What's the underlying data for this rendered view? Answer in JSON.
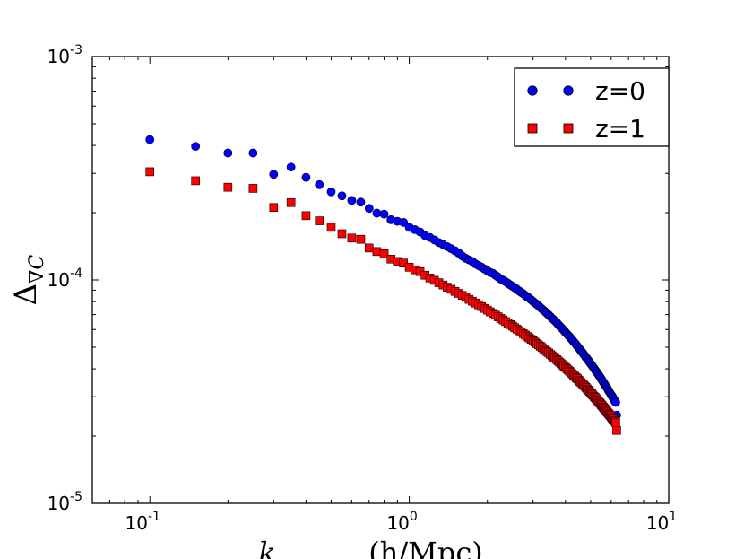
{
  "chart_data": {
    "type": "scatter",
    "title": "",
    "xscale": "log",
    "yscale": "log",
    "xlim": [
      0.06,
      10
    ],
    "ylim": [
      1e-05,
      0.001
    ],
    "grid": false,
    "legend_position": "top-right",
    "xlabel_parts": [
      "k",
      "(h/Mpc)"
    ],
    "ylabel": {
      "main": "Δ",
      "sub": "∇C"
    },
    "x_ticks": [
      {
        "value": 0.1,
        "base": "10",
        "exp": "-1"
      },
      {
        "value": 1,
        "base": "10",
        "exp": "0"
      },
      {
        "value": 10,
        "base": "10",
        "exp": "1"
      }
    ],
    "y_ticks": [
      {
        "value": 1e-05,
        "base": "10",
        "exp": "-5"
      },
      {
        "value": 0.0001,
        "base": "10",
        "exp": "-4"
      },
      {
        "value": 0.001,
        "base": "10",
        "exp": "-3"
      }
    ],
    "series": [
      {
        "name": "z=0",
        "marker": "circle",
        "color": "#0000ff",
        "x": [
          0.1,
          0.15,
          0.2,
          0.25,
          0.3,
          0.35,
          0.4,
          0.45,
          0.5,
          0.55,
          0.6,
          0.65,
          0.7,
          0.75,
          0.8,
          0.85,
          0.9,
          0.95,
          1.0,
          1.05,
          1.1,
          1.15,
          1.2,
          1.25,
          1.3,
          1.35,
          1.4,
          1.45,
          1.5,
          1.55,
          1.6,
          1.65,
          1.7,
          1.75,
          1.8,
          1.85,
          1.9,
          1.95,
          2.0,
          2.05,
          2.1,
          2.15,
          2.2,
          2.25,
          2.3,
          2.35,
          2.4,
          2.45,
          2.5,
          2.55,
          2.6,
          2.65,
          2.7,
          2.75,
          2.8,
          2.85,
          2.9,
          2.95,
          3.0,
          3.05,
          3.1,
          3.15,
          3.2,
          3.25,
          3.3,
          3.35,
          3.4,
          3.45,
          3.5,
          3.55,
          3.6,
          3.65,
          3.7,
          3.75,
          3.8,
          3.85,
          3.9,
          3.95,
          4.0,
          4.05,
          4.1,
          4.15,
          4.2,
          4.25,
          4.3,
          4.35,
          4.4,
          4.45,
          4.5,
          4.55,
          4.6,
          4.65,
          4.7,
          4.75,
          4.8,
          4.85,
          4.9,
          4.95,
          5.0,
          5.05,
          5.1,
          5.15,
          5.2,
          5.25,
          5.3,
          5.35,
          5.4,
          5.45,
          5.5,
          5.55,
          5.6,
          5.65,
          5.7,
          5.75,
          5.8,
          5.85,
          5.9,
          5.95,
          6.0,
          6.05,
          6.1,
          6.15,
          6.2,
          6.25,
          6.3
        ],
        "y": [
          0.000425,
          0.000396,
          0.00037,
          0.00037,
          0.000297,
          0.00032,
          0.000288,
          0.000267,
          0.000248,
          0.000238,
          0.000227,
          0.000223,
          0.000209,
          0.000199,
          0.000197,
          0.000186,
          0.000183,
          0.000181,
          0.000172,
          0.000168,
          0.000164,
          0.000158,
          0.000155,
          0.000151,
          0.000147,
          0.000144,
          0.000141,
          0.000138,
          0.000135,
          0.000132,
          0.000128,
          0.000125,
          0.000123,
          0.000121,
          0.000118,
          0.000116,
          0.000114,
          0.000112,
          0.00011,
          0.000108,
          0.000107,
          0.000105,
          0.000103,
          0.000101,
          9.97e-05,
          9.82e-05,
          9.66e-05,
          9.5e-05,
          9.36e-05,
          9.22e-05,
          9.08e-05,
          8.93e-05,
          8.79e-05,
          8.67e-05,
          8.53e-05,
          8.4e-05,
          8.29e-05,
          8.15e-05,
          8.02e-05,
          7.89e-05,
          7.78e-05,
          7.66e-05,
          7.53e-05,
          7.41e-05,
          7.3e-05,
          7.19e-05,
          7.07e-05,
          6.96e-05,
          6.85e-05,
          6.73e-05,
          6.64e-05,
          6.54e-05,
          6.44e-05,
          6.32e-05,
          6.22e-05,
          6.12e-05,
          6.03e-05,
          5.93e-05,
          5.83e-05,
          5.74e-05,
          5.65e-05,
          5.57e-05,
          5.47e-05,
          5.39e-05,
          5.29e-05,
          5.22e-05,
          5.13e-05,
          5.04e-05,
          4.97e-05,
          4.88e-05,
          4.8e-05,
          4.73e-05,
          4.65e-05,
          4.58e-05,
          4.5e-05,
          4.43e-05,
          4.36e-05,
          4.29e-05,
          4.22e-05,
          4.16e-05,
          4.09e-05,
          4.03e-05,
          3.96e-05,
          3.9e-05,
          3.84e-05,
          3.78e-05,
          3.72e-05,
          3.66e-05,
          3.6e-05,
          3.54e-05,
          3.48e-05,
          3.43e-05,
          3.37e-05,
          3.32e-05,
          3.27e-05,
          3.21e-05,
          3.16e-05,
          3.11e-05,
          3.06e-05,
          3.02e-05,
          2.97e-05,
          2.92e-05,
          2.87e-05,
          2.83e-05,
          2.48e-05
        ]
      },
      {
        "name": "z=1",
        "marker": "square",
        "color": "#ff0000",
        "x": [
          0.1,
          0.15,
          0.2,
          0.25,
          0.3,
          0.35,
          0.4,
          0.45,
          0.5,
          0.55,
          0.6,
          0.65,
          0.7,
          0.75,
          0.8,
          0.85,
          0.9,
          0.95,
          1.0,
          1.05,
          1.1,
          1.15,
          1.2,
          1.25,
          1.3,
          1.35,
          1.4,
          1.45,
          1.5,
          1.55,
          1.6,
          1.65,
          1.7,
          1.75,
          1.8,
          1.85,
          1.9,
          1.95,
          2.0,
          2.05,
          2.1,
          2.15,
          2.2,
          2.25,
          2.3,
          2.35,
          2.4,
          2.45,
          2.5,
          2.55,
          2.6,
          2.65,
          2.7,
          2.75,
          2.8,
          2.85,
          2.9,
          2.95,
          3.0,
          3.05,
          3.1,
          3.15,
          3.2,
          3.25,
          3.3,
          3.35,
          3.4,
          3.45,
          3.5,
          3.55,
          3.6,
          3.65,
          3.7,
          3.75,
          3.8,
          3.85,
          3.9,
          3.95,
          4.0,
          4.05,
          4.1,
          4.15,
          4.2,
          4.25,
          4.3,
          4.35,
          4.4,
          4.45,
          4.5,
          4.55,
          4.6,
          4.65,
          4.7,
          4.75,
          4.8,
          4.85,
          4.9,
          4.95,
          5.0,
          5.05,
          5.1,
          5.15,
          5.2,
          5.25,
          5.3,
          5.35,
          5.4,
          5.45,
          5.5,
          5.55,
          5.6,
          5.65,
          5.7,
          5.75,
          5.8,
          5.85,
          5.9,
          5.95,
          6.0,
          6.05,
          6.1,
          6.15,
          6.2,
          6.25,
          6.3
        ],
        "y": [
          0.000305,
          0.000278,
          0.00026,
          0.000257,
          0.000211,
          0.000222,
          0.000194,
          0.000184,
          0.000172,
          0.000161,
          0.000154,
          0.000152,
          0.000139,
          0.000134,
          0.000131,
          0.000124,
          0.000121,
          0.000119,
          0.000114,
          0.000111,
          0.000109,
          0.000105,
          0.000102,
          9.96e-05,
          9.72e-05,
          9.49e-05,
          9.28e-05,
          9.08e-05,
          8.89e-05,
          8.71e-05,
          8.53e-05,
          8.36e-05,
          8.19e-05,
          8.03e-05,
          7.88e-05,
          7.74e-05,
          7.6e-05,
          7.46e-05,
          7.33e-05,
          7.2e-05,
          7.08e-05,
          6.96e-05,
          6.84e-05,
          6.73e-05,
          6.62e-05,
          6.51e-05,
          6.41e-05,
          6.31e-05,
          6.21e-05,
          6.11e-05,
          6.02e-05,
          5.93e-05,
          5.84e-05,
          5.75e-05,
          5.67e-05,
          5.58e-05,
          5.5e-05,
          5.42e-05,
          5.34e-05,
          5.27e-05,
          5.19e-05,
          5.12e-05,
          5.05e-05,
          4.98e-05,
          4.91e-05,
          4.84e-05,
          4.77e-05,
          4.71e-05,
          4.64e-05,
          4.58e-05,
          4.52e-05,
          4.46e-05,
          4.4e-05,
          4.34e-05,
          4.28e-05,
          4.22e-05,
          4.17e-05,
          4.11e-05,
          4.06e-05,
          4e-05,
          3.95e-05,
          3.9e-05,
          3.85e-05,
          3.8e-05,
          3.75e-05,
          3.7e-05,
          3.65e-05,
          3.61e-05,
          3.56e-05,
          3.51e-05,
          3.47e-05,
          3.43e-05,
          3.38e-05,
          3.34e-05,
          3.3e-05,
          3.25e-05,
          3.21e-05,
          3.17e-05,
          3.13e-05,
          3.09e-05,
          3.05e-05,
          3.01e-05,
          2.98e-05,
          2.94e-05,
          2.9e-05,
          2.87e-05,
          2.83e-05,
          2.8e-05,
          2.76e-05,
          2.73e-05,
          2.69e-05,
          2.66e-05,
          2.63e-05,
          2.6e-05,
          2.56e-05,
          2.53e-05,
          2.5e-05,
          2.47e-05,
          2.44e-05,
          2.41e-05,
          2.38e-05,
          2.35e-05,
          2.33e-05,
          2.3e-05,
          2.12e-05
        ]
      }
    ]
  }
}
